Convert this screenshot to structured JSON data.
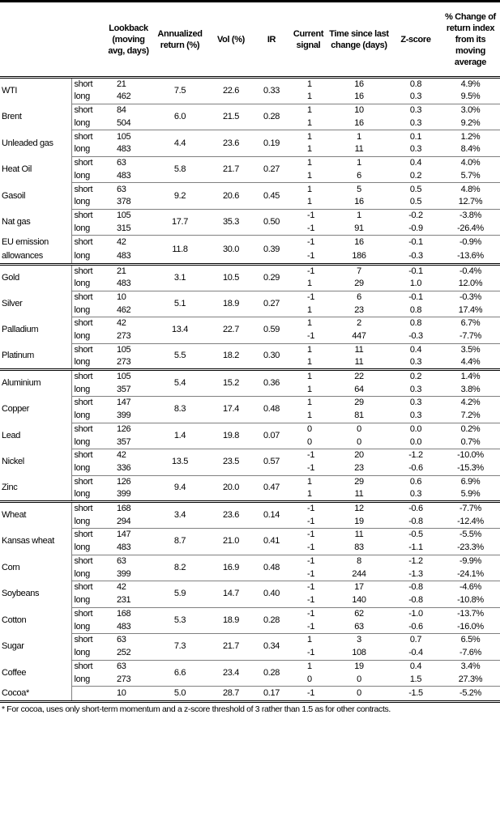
{
  "headers": [
    "",
    "",
    "Lookback (moving avg, days)",
    "Annualized return (%)",
    "Vol (%)",
    "IR",
    "Current signal",
    "Time since last change (days)",
    "Z-score",
    "% Change of return index from its moving average"
  ],
  "sectors": [
    [
      {
        "name": "WTI",
        "annualized": "7.5",
        "vol": "22.6",
        "ir": "0.33",
        "rows": [
          {
            "type": "short",
            "lookback": "21",
            "signal": "1",
            "time": "16",
            "z": "0.8",
            "pct": "4.9%"
          },
          {
            "type": "long",
            "lookback": "462",
            "signal": "1",
            "time": "16",
            "z": "0.3",
            "pct": "9.5%"
          }
        ]
      },
      {
        "name": "Brent",
        "annualized": "6.0",
        "vol": "21.5",
        "ir": "0.28",
        "rows": [
          {
            "type": "short",
            "lookback": "84",
            "signal": "1",
            "time": "10",
            "z": "0.3",
            "pct": "3.0%"
          },
          {
            "type": "long",
            "lookback": "504",
            "signal": "1",
            "time": "16",
            "z": "0.3",
            "pct": "9.2%"
          }
        ]
      },
      {
        "name": "Unleaded gas",
        "annualized": "4.4",
        "vol": "23.6",
        "ir": "0.19",
        "rows": [
          {
            "type": "short",
            "lookback": "105",
            "signal": "1",
            "time": "1",
            "z": "0.1",
            "pct": "1.2%"
          },
          {
            "type": "long",
            "lookback": "483",
            "signal": "1",
            "time": "11",
            "z": "0.3",
            "pct": "8.4%"
          }
        ]
      },
      {
        "name": "Heat Oil",
        "annualized": "5.8",
        "vol": "21.7",
        "ir": "0.27",
        "rows": [
          {
            "type": "short",
            "lookback": "63",
            "signal": "1",
            "time": "1",
            "z": "0.4",
            "pct": "4.0%"
          },
          {
            "type": "long",
            "lookback": "483",
            "signal": "1",
            "time": "6",
            "z": "0.2",
            "pct": "5.7%"
          }
        ]
      },
      {
        "name": "Gasoil",
        "annualized": "9.2",
        "vol": "20.6",
        "ir": "0.45",
        "rows": [
          {
            "type": "short",
            "lookback": "63",
            "signal": "1",
            "time": "5",
            "z": "0.5",
            "pct": "4.8%"
          },
          {
            "type": "long",
            "lookback": "378",
            "signal": "1",
            "time": "16",
            "z": "0.5",
            "pct": "12.7%"
          }
        ]
      },
      {
        "name": "Nat gas",
        "annualized": "17.7",
        "vol": "35.3",
        "ir": "0.50",
        "rows": [
          {
            "type": "short",
            "lookback": "105",
            "signal": "-1",
            "time": "1",
            "z": "-0.2",
            "pct": "-3.8%"
          },
          {
            "type": "long",
            "lookback": "315",
            "signal": "-1",
            "time": "91",
            "z": "-0.9",
            "pct": "-26.4%"
          }
        ]
      },
      {
        "name": "EU emission allowances",
        "annualized": "11.8",
        "vol": "30.0",
        "ir": "0.39",
        "rows": [
          {
            "type": "short",
            "lookback": "42",
            "signal": "-1",
            "time": "16",
            "z": "-0.1",
            "pct": "-0.9%"
          },
          {
            "type": "long",
            "lookback": "483",
            "signal": "-1",
            "time": "186",
            "z": "-0.3",
            "pct": "-13.6%"
          }
        ]
      }
    ],
    [
      {
        "name": "Gold",
        "annualized": "3.1",
        "vol": "10.5",
        "ir": "0.29",
        "rows": [
          {
            "type": "short",
            "lookback": "21",
            "signal": "-1",
            "time": "7",
            "z": "-0.1",
            "pct": "-0.4%"
          },
          {
            "type": "long",
            "lookback": "483",
            "signal": "1",
            "time": "29",
            "z": "1.0",
            "pct": "12.0%"
          }
        ]
      },
      {
        "name": "Silver",
        "annualized": "5.1",
        "vol": "18.9",
        "ir": "0.27",
        "rows": [
          {
            "type": "short",
            "lookback": "10",
            "signal": "-1",
            "time": "6",
            "z": "-0.1",
            "pct": "-0.3%"
          },
          {
            "type": "long",
            "lookback": "462",
            "signal": "1",
            "time": "23",
            "z": "0.8",
            "pct": "17.4%"
          }
        ]
      },
      {
        "name": "Palladium",
        "annualized": "13.4",
        "vol": "22.7",
        "ir": "0.59",
        "rows": [
          {
            "type": "short",
            "lookback": "42",
            "signal": "1",
            "time": "2",
            "z": "0.8",
            "pct": "6.7%"
          },
          {
            "type": "long",
            "lookback": "273",
            "signal": "-1",
            "time": "447",
            "z": "-0.3",
            "pct": "-7.7%"
          }
        ]
      },
      {
        "name": "Platinum",
        "annualized": "5.5",
        "vol": "18.2",
        "ir": "0.30",
        "rows": [
          {
            "type": "short",
            "lookback": "105",
            "signal": "1",
            "time": "11",
            "z": "0.4",
            "pct": "3.5%"
          },
          {
            "type": "long",
            "lookback": "273",
            "signal": "1",
            "time": "11",
            "z": "0.3",
            "pct": "4.4%"
          }
        ]
      }
    ],
    [
      {
        "name": "Aluminium",
        "annualized": "5.4",
        "vol": "15.2",
        "ir": "0.36",
        "rows": [
          {
            "type": "short",
            "lookback": "105",
            "signal": "1",
            "time": "22",
            "z": "0.2",
            "pct": "1.4%"
          },
          {
            "type": "long",
            "lookback": "357",
            "signal": "1",
            "time": "64",
            "z": "0.3",
            "pct": "3.8%"
          }
        ]
      },
      {
        "name": "Copper",
        "annualized": "8.3",
        "vol": "17.4",
        "ir": "0.48",
        "rows": [
          {
            "type": "short",
            "lookback": "147",
            "signal": "1",
            "time": "29",
            "z": "0.3",
            "pct": "4.2%"
          },
          {
            "type": "long",
            "lookback": "399",
            "signal": "1",
            "time": "81",
            "z": "0.3",
            "pct": "7.2%"
          }
        ]
      },
      {
        "name": "Lead",
        "annualized": "1.4",
        "vol": "19.8",
        "ir": "0.07",
        "rows": [
          {
            "type": "short",
            "lookback": "126",
            "signal": "0",
            "time": "0",
            "z": "0.0",
            "pct": "0.2%"
          },
          {
            "type": "long",
            "lookback": "357",
            "signal": "0",
            "time": "0",
            "z": "0.0",
            "pct": "0.7%"
          }
        ]
      },
      {
        "name": "Nickel",
        "annualized": "13.5",
        "vol": "23.5",
        "ir": "0.57",
        "rows": [
          {
            "type": "short",
            "lookback": "42",
            "signal": "-1",
            "time": "20",
            "z": "-1.2",
            "pct": "-10.0%"
          },
          {
            "type": "long",
            "lookback": "336",
            "signal": "-1",
            "time": "23",
            "z": "-0.6",
            "pct": "-15.3%"
          }
        ]
      },
      {
        "name": "Zinc",
        "annualized": "9.4",
        "vol": "20.0",
        "ir": "0.47",
        "rows": [
          {
            "type": "short",
            "lookback": "126",
            "signal": "1",
            "time": "29",
            "z": "0.6",
            "pct": "6.9%"
          },
          {
            "type": "long",
            "lookback": "399",
            "signal": "1",
            "time": "11",
            "z": "0.3",
            "pct": "5.9%"
          }
        ]
      }
    ],
    [
      {
        "name": "Wheat",
        "annualized": "3.4",
        "vol": "23.6",
        "ir": "0.14",
        "rows": [
          {
            "type": "short",
            "lookback": "168",
            "signal": "-1",
            "time": "12",
            "z": "-0.6",
            "pct": "-7.7%"
          },
          {
            "type": "long",
            "lookback": "294",
            "signal": "-1",
            "time": "19",
            "z": "-0.8",
            "pct": "-12.4%"
          }
        ]
      },
      {
        "name": "Kansas wheat",
        "annualized": "8.7",
        "vol": "21.0",
        "ir": "0.41",
        "rows": [
          {
            "type": "short",
            "lookback": "147",
            "signal": "-1",
            "time": "11",
            "z": "-0.5",
            "pct": "-5.5%"
          },
          {
            "type": "long",
            "lookback": "483",
            "signal": "-1",
            "time": "83",
            "z": "-1.1",
            "pct": "-23.3%"
          }
        ]
      },
      {
        "name": "Corn",
        "annualized": "8.2",
        "vol": "16.9",
        "ir": "0.48",
        "rows": [
          {
            "type": "short",
            "lookback": "63",
            "signal": "-1",
            "time": "8",
            "z": "-1.2",
            "pct": "-9.9%"
          },
          {
            "type": "long",
            "lookback": "399",
            "signal": "-1",
            "time": "244",
            "z": "-1.3",
            "pct": "-24.1%"
          }
        ]
      },
      {
        "name": "Soybeans",
        "annualized": "5.9",
        "vol": "14.7",
        "ir": "0.40",
        "rows": [
          {
            "type": "short",
            "lookback": "42",
            "signal": "-1",
            "time": "17",
            "z": "-0.8",
            "pct": "-4.6%"
          },
          {
            "type": "long",
            "lookback": "231",
            "signal": "-1",
            "time": "140",
            "z": "-0.8",
            "pct": "-10.8%"
          }
        ]
      },
      {
        "name": "Cotton",
        "annualized": "5.3",
        "vol": "18.9",
        "ir": "0.28",
        "rows": [
          {
            "type": "short",
            "lookback": "168",
            "signal": "-1",
            "time": "62",
            "z": "-1.0",
            "pct": "-13.7%"
          },
          {
            "type": "long",
            "lookback": "483",
            "signal": "-1",
            "time": "63",
            "z": "-0.6",
            "pct": "-16.0%"
          }
        ]
      },
      {
        "name": "Sugar",
        "annualized": "7.3",
        "vol": "21.7",
        "ir": "0.34",
        "rows": [
          {
            "type": "short",
            "lookback": "63",
            "signal": "1",
            "time": "3",
            "z": "0.7",
            "pct": "6.5%"
          },
          {
            "type": "long",
            "lookback": "252",
            "signal": "-1",
            "time": "108",
            "z": "-0.4",
            "pct": "-7.6%"
          }
        ]
      },
      {
        "name": "Coffee",
        "annualized": "6.6",
        "vol": "23.4",
        "ir": "0.28",
        "rows": [
          {
            "type": "short",
            "lookback": "63",
            "signal": "1",
            "time": "19",
            "z": "0.4",
            "pct": "3.4%"
          },
          {
            "type": "long",
            "lookback": "273",
            "signal": "0",
            "time": "0",
            "z": "1.5",
            "pct": "27.3%"
          }
        ]
      },
      {
        "name": "Cocoa*",
        "annualized": "5.0",
        "vol": "28.7",
        "ir": "0.17",
        "rows": [
          {
            "type": "",
            "lookback": "10",
            "signal": "-1",
            "time": "0",
            "z": "-1.5",
            "pct": "-5.2%"
          }
        ]
      }
    ]
  ],
  "footnote": "* For cocoa, uses only short-term momentum and a z-score threshold of 3 rather than 1.5 as for other contracts."
}
